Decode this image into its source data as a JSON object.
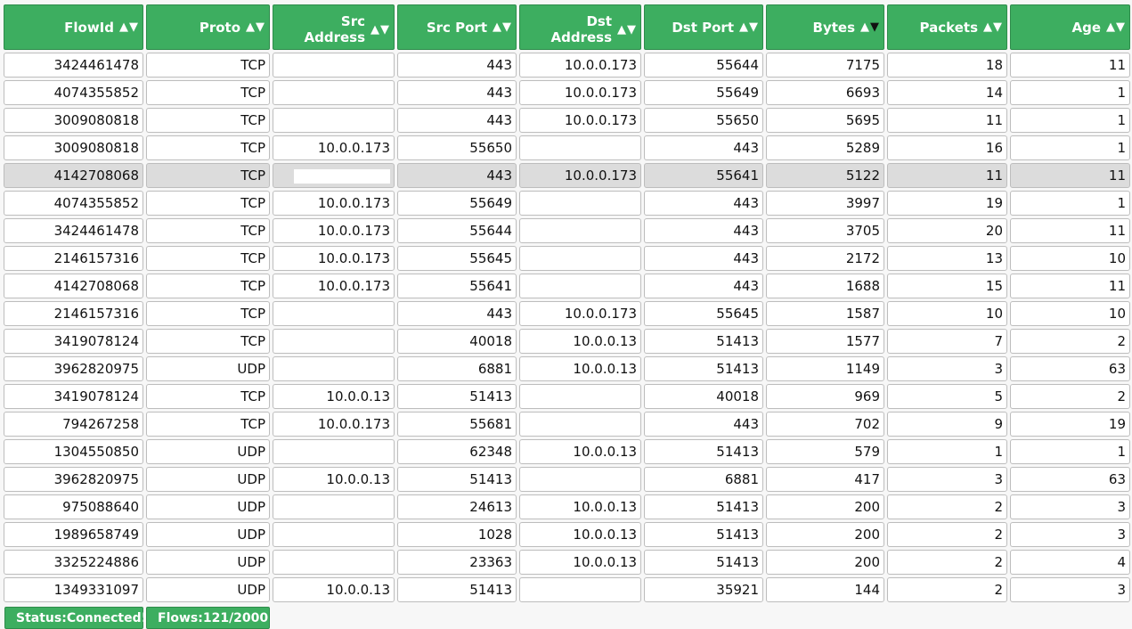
{
  "columns": [
    {
      "label_top": "",
      "label": "FlowId"
    },
    {
      "label_top": "",
      "label": "Proto"
    },
    {
      "label_top": "Src",
      "label": "Address"
    },
    {
      "label_top": "",
      "label": "Src Port"
    },
    {
      "label_top": "Dst",
      "label": "Address"
    },
    {
      "label_top": "",
      "label": "Dst Port"
    },
    {
      "label_top": "",
      "label": "Bytes"
    },
    {
      "label_top": "",
      "label": "Packets"
    },
    {
      "label_top": "",
      "label": "Age"
    }
  ],
  "sort_glyph_up": "▲",
  "sort_glyph_down": "▼",
  "sorted_column": "Bytes",
  "sort_direction": "descending",
  "redacted_marker": "",
  "rows": [
    {
      "flowid": "3424461478",
      "proto": "TCP",
      "src": "",
      "sport": "443",
      "dst": "10.0.0.173",
      "dport": "55644",
      "bytes": "7175",
      "packets": "18",
      "age": "11"
    },
    {
      "flowid": "4074355852",
      "proto": "TCP",
      "src": "",
      "sport": "443",
      "dst": "10.0.0.173",
      "dport": "55649",
      "bytes": "6693",
      "packets": "14",
      "age": "1"
    },
    {
      "flowid": "3009080818",
      "proto": "TCP",
      "src": "",
      "sport": "443",
      "dst": "10.0.0.173",
      "dport": "55650",
      "bytes": "5695",
      "packets": "11",
      "age": "1"
    },
    {
      "flowid": "3009080818",
      "proto": "TCP",
      "src": "10.0.0.173",
      "sport": "55650",
      "dst": "",
      "dport": "443",
      "bytes": "5289",
      "packets": "16",
      "age": "1"
    },
    {
      "flowid": "4142708068",
      "proto": "TCP",
      "src": "",
      "sport": "443",
      "dst": "10.0.0.173",
      "dport": "55641",
      "bytes": "5122",
      "packets": "11",
      "age": "11",
      "selected": true
    },
    {
      "flowid": "4074355852",
      "proto": "TCP",
      "src": "10.0.0.173",
      "sport": "55649",
      "dst": "",
      "dport": "443",
      "bytes": "3997",
      "packets": "19",
      "age": "1"
    },
    {
      "flowid": "3424461478",
      "proto": "TCP",
      "src": "10.0.0.173",
      "sport": "55644",
      "dst": "",
      "dport": "443",
      "bytes": "3705",
      "packets": "20",
      "age": "11"
    },
    {
      "flowid": "2146157316",
      "proto": "TCP",
      "src": "10.0.0.173",
      "sport": "55645",
      "dst": "",
      "dport": "443",
      "bytes": "2172",
      "packets": "13",
      "age": "10"
    },
    {
      "flowid": "4142708068",
      "proto": "TCP",
      "src": "10.0.0.173",
      "sport": "55641",
      "dst": "",
      "dport": "443",
      "bytes": "1688",
      "packets": "15",
      "age": "11"
    },
    {
      "flowid": "2146157316",
      "proto": "TCP",
      "src": "",
      "sport": "443",
      "dst": "10.0.0.173",
      "dport": "55645",
      "bytes": "1587",
      "packets": "10",
      "age": "10"
    },
    {
      "flowid": "3419078124",
      "proto": "TCP",
      "src": "",
      "sport": "40018",
      "dst": "10.0.0.13",
      "dport": "51413",
      "bytes": "1577",
      "packets": "7",
      "age": "2"
    },
    {
      "flowid": "3962820975",
      "proto": "UDP",
      "src": "",
      "sport": "6881",
      "dst": "10.0.0.13",
      "dport": "51413",
      "bytes": "1149",
      "packets": "3",
      "age": "63"
    },
    {
      "flowid": "3419078124",
      "proto": "TCP",
      "src": "10.0.0.13",
      "sport": "51413",
      "dst": "",
      "dport": "40018",
      "bytes": "969",
      "packets": "5",
      "age": "2"
    },
    {
      "flowid": "794267258",
      "proto": "TCP",
      "src": "10.0.0.173",
      "sport": "55681",
      "dst": "",
      "dport": "443",
      "bytes": "702",
      "packets": "9",
      "age": "19"
    },
    {
      "flowid": "1304550850",
      "proto": "UDP",
      "src": "",
      "sport": "62348",
      "dst": "10.0.0.13",
      "dport": "51413",
      "bytes": "579",
      "packets": "1",
      "age": "1"
    },
    {
      "flowid": "3962820975",
      "proto": "UDP",
      "src": "10.0.0.13",
      "sport": "51413",
      "dst": "",
      "dport": "6881",
      "bytes": "417",
      "packets": "3",
      "age": "63"
    },
    {
      "flowid": "975088640",
      "proto": "UDP",
      "src": "",
      "sport": "24613",
      "dst": "10.0.0.13",
      "dport": "51413",
      "bytes": "200",
      "packets": "2",
      "age": "3"
    },
    {
      "flowid": "1989658749",
      "proto": "UDP",
      "src": "",
      "sport": "1028",
      "dst": "10.0.0.13",
      "dport": "51413",
      "bytes": "200",
      "packets": "2",
      "age": "3"
    },
    {
      "flowid": "3325224886",
      "proto": "UDP",
      "src": "",
      "sport": "23363",
      "dst": "10.0.0.13",
      "dport": "51413",
      "bytes": "200",
      "packets": "2",
      "age": "4"
    },
    {
      "flowid": "1349331097",
      "proto": "UDP",
      "src": "10.0.0.13",
      "sport": "51413",
      "dst": "",
      "dport": "35921",
      "bytes": "144",
      "packets": "2",
      "age": "3"
    }
  ],
  "status": {
    "connection": "Status:Connected!",
    "flows": "Flows:121/2000"
  },
  "colors": {
    "header_bg": "#3dae60",
    "selected_row_bg": "#dcdcdc",
    "cell_bg": "#ffffff"
  }
}
